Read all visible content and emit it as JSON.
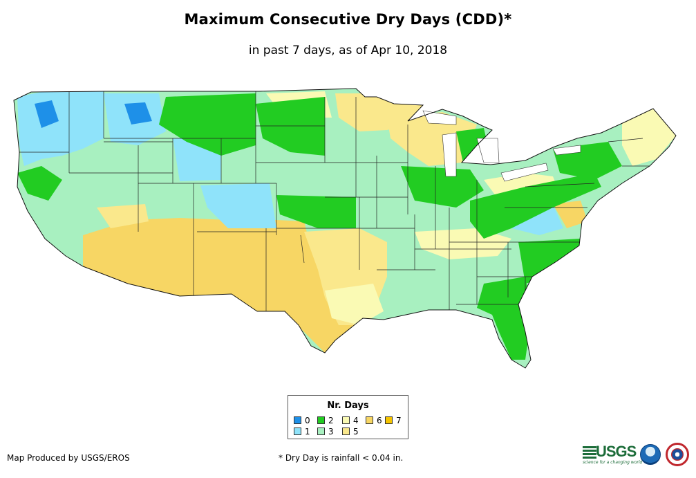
{
  "title": "Maximum Consecutive Dry Days (CDD)*",
  "subtitle": "in past 7 days, as of Apr 10, 2018",
  "legend": {
    "title": "Nr. Days",
    "items": [
      {
        "label": "0",
        "color": "#1e90e8"
      },
      {
        "label": "1",
        "color": "#8fe3fa"
      },
      {
        "label": "2",
        "color": "#22cc22"
      },
      {
        "label": "3",
        "color": "#a8f0c0"
      },
      {
        "label": "4",
        "color": "#fafab4"
      },
      {
        "label": "5",
        "color": "#fae88c"
      },
      {
        "label": "6",
        "color": "#f7d664"
      },
      {
        "label": "7",
        "color": "#f5c400"
      }
    ]
  },
  "footer": {
    "credit": "Map Produced by USGS/EROS",
    "note": "* Dry Day is rainfall < 0.04 in."
  },
  "logos": {
    "usgs_text": "USGS",
    "usgs_tagline": "science for a changing world",
    "noaa": "noaa-logo",
    "nws": "nws-logo"
  }
}
